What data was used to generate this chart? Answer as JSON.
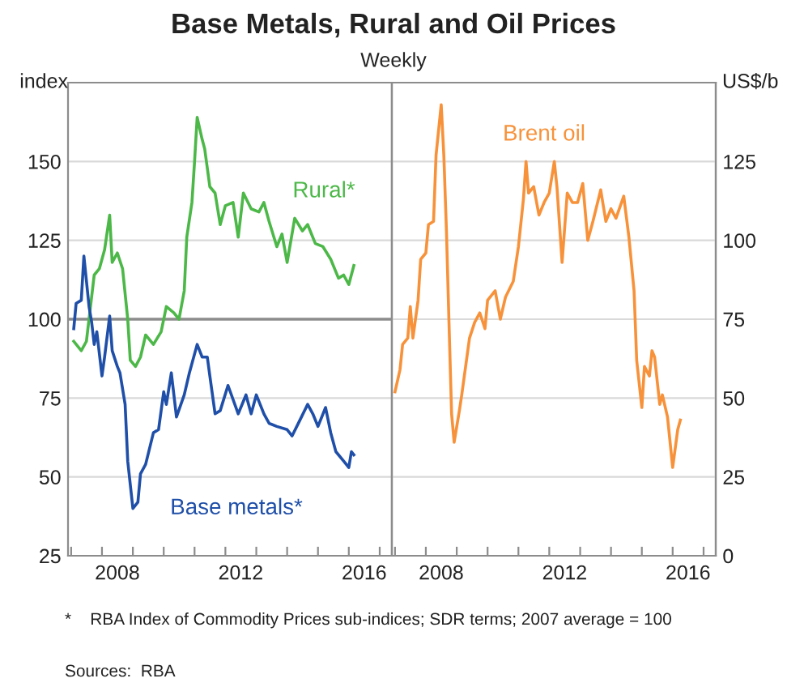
{
  "chart_data": [
    {
      "type": "line",
      "title": "Base Metals, Rural and Oil Prices",
      "subtitle": "Weekly",
      "ylabel": "index",
      "annotations": [
        "*    RBA Index of Commodity Prices sub-indices; SDR terms; 2007 average = 100",
        "Sources:  RBA"
      ],
      "xlim": [
        "2006-11-25",
        "2017-05-25"
      ],
      "xticks": [
        {
          "value": "2007-01-01",
          "label": null
        },
        {
          "value": "2008-01-01",
          "label": null
        },
        {
          "value": "2009-01-01",
          "label": null
        },
        {
          "value": "2010-01-01",
          "label": null
        },
        {
          "value": "2011-01-01",
          "label": null
        },
        {
          "value": "2012-01-01",
          "label": null
        },
        {
          "value": "2013-01-01",
          "label": null
        },
        {
          "value": "2014-01-01",
          "label": null
        },
        {
          "value": "2015-01-01",
          "label": null
        },
        {
          "value": "2016-01-01",
          "label": null
        },
        {
          "value": "2017-01-01",
          "label": null
        },
        {
          "value": "2008-07-01",
          "label": "2008"
        },
        {
          "value": "2012-07-01",
          "label": "2012"
        },
        {
          "value": "2016-07-01",
          "label": "2016"
        }
      ],
      "ylim": [
        25,
        175
      ],
      "yticks": [
        25,
        50,
        75,
        100,
        125,
        150
      ],
      "grid": "y",
      "legend": false,
      "ref_lines": [
        {
          "axis": "y",
          "value": 100,
          "color": "#8c8c8c"
        }
      ],
      "series": [
        {
          "name": "Rural*",
          "color": "#4cb848",
          "x": [
            "2007-02",
            "2007-05",
            "2007-07",
            "2007-10",
            "2007-12",
            "2008-02",
            "2008-04",
            "2008-05",
            "2008-07",
            "2008-09",
            "2008-11",
            "2008-12",
            "2009-02",
            "2009-04",
            "2009-06",
            "2009-09",
            "2009-12",
            "2010-02",
            "2010-05",
            "2010-07",
            "2010-09",
            "2010-10",
            "2010-12",
            "2011-01",
            "2011-02",
            "2011-04",
            "2011-05",
            "2011-07",
            "2011-09",
            "2011-11",
            "2012-01",
            "2012-04",
            "2012-06",
            "2012-08",
            "2012-11",
            "2013-02",
            "2013-04",
            "2013-06",
            "2013-09",
            "2013-11",
            "2014-01",
            "2014-04",
            "2014-07",
            "2014-09",
            "2014-12",
            "2015-03",
            "2015-06",
            "2015-09",
            "2015-11",
            "2016-01",
            "2016-03"
          ],
          "values": [
            93,
            90,
            93,
            114,
            116,
            122,
            133,
            118,
            121,
            116,
            100,
            87,
            85,
            88,
            95,
            92,
            96,
            104,
            102,
            100,
            109,
            126,
            137,
            150,
            164,
            157,
            154,
            142,
            140,
            130,
            136,
            137,
            126,
            140,
            135,
            134,
            137,
            131,
            123,
            127,
            118,
            132,
            128,
            130,
            124,
            123,
            119,
            113,
            114,
            111,
            117
          ]
        },
        {
          "name": "Base metals*",
          "color": "#1f4fa8",
          "x": [
            "2007-02",
            "2007-03",
            "2007-05",
            "2007-06",
            "2007-08",
            "2007-09",
            "2007-10",
            "2007-11",
            "2008-01",
            "2008-02",
            "2008-04",
            "2008-05",
            "2008-07",
            "2008-08",
            "2008-10",
            "2008-11",
            "2009-01",
            "2009-03",
            "2009-04",
            "2009-06",
            "2009-09",
            "2009-11",
            "2010-01",
            "2010-02",
            "2010-04",
            "2010-06",
            "2010-09",
            "2010-11",
            "2011-02",
            "2011-04",
            "2011-06",
            "2011-07",
            "2011-09",
            "2011-11",
            "2012-02",
            "2012-06",
            "2012-09",
            "2012-11",
            "2013-01",
            "2013-04",
            "2013-06",
            "2013-09",
            "2014-01",
            "2014-03",
            "2014-06",
            "2014-09",
            "2014-11",
            "2015-01",
            "2015-04",
            "2015-06",
            "2015-08",
            "2015-11",
            "2016-01",
            "2016-02",
            "2016-03"
          ],
          "values": [
            97,
            105,
            106,
            120,
            104,
            99,
            92,
            96,
            82,
            88,
            101,
            90,
            85,
            83,
            73,
            55,
            40,
            42,
            51,
            54,
            64,
            65,
            77,
            73,
            83,
            69,
            76,
            83,
            92,
            88,
            88,
            82,
            70,
            71,
            79,
            70,
            76,
            70,
            76,
            70,
            67,
            66,
            65,
            63,
            68,
            73,
            70,
            66,
            72,
            64,
            58,
            55,
            53,
            58,
            57
          ]
        }
      ]
    },
    {
      "type": "line",
      "y2label": "US$/b",
      "xlim": [
        "2006-11-25",
        "2017-05-25"
      ],
      "xticks": [
        {
          "value": "2007-01-01",
          "label": null
        },
        {
          "value": "2008-01-01",
          "label": null
        },
        {
          "value": "2009-01-01",
          "label": null
        },
        {
          "value": "2010-01-01",
          "label": null
        },
        {
          "value": "2011-01-01",
          "label": null
        },
        {
          "value": "2012-01-01",
          "label": null
        },
        {
          "value": "2013-01-01",
          "label": null
        },
        {
          "value": "2014-01-01",
          "label": null
        },
        {
          "value": "2015-01-01",
          "label": null
        },
        {
          "value": "2016-01-01",
          "label": null
        },
        {
          "value": "2017-01-01",
          "label": null
        },
        {
          "value": "2008-07-01",
          "label": "2008"
        },
        {
          "value": "2012-07-01",
          "label": "2012"
        },
        {
          "value": "2016-07-01",
          "label": "2016"
        }
      ],
      "y2lim": [
        0,
        150
      ],
      "y2ticks": [
        0,
        25,
        50,
        75,
        100,
        125
      ],
      "grid": "y",
      "legend": false,
      "series": [
        {
          "name": "Brent oil",
          "color": "#f7923a",
          "axis": "y2",
          "x": [
            "2007-01",
            "2007-03",
            "2007-04",
            "2007-06",
            "2007-07",
            "2007-08",
            "2007-10",
            "2007-11",
            "2008-01",
            "2008-02",
            "2008-04",
            "2008-05",
            "2008-07",
            "2008-08",
            "2008-09",
            "2008-10",
            "2008-11",
            "2008-12",
            "2009-02",
            "2009-03",
            "2009-06",
            "2009-08",
            "2009-10",
            "2009-12",
            "2010-01",
            "2010-04",
            "2010-06",
            "2010-08",
            "2010-11",
            "2011-01",
            "2011-03",
            "2011-04",
            "2011-05",
            "2011-07",
            "2011-09",
            "2011-11",
            "2012-01",
            "2012-03",
            "2012-04",
            "2012-06",
            "2012-08",
            "2012-10",
            "2012-12",
            "2013-02",
            "2013-04",
            "2013-06",
            "2013-09",
            "2013-11",
            "2014-01",
            "2014-03",
            "2014-06",
            "2014-08",
            "2014-10",
            "2014-11",
            "2015-01",
            "2015-02",
            "2015-04",
            "2015-05",
            "2015-06",
            "2015-08",
            "2015-09",
            "2015-11",
            "2016-01",
            "2016-03",
            "2016-04"
          ],
          "values": [
            52,
            59,
            67,
            69,
            79,
            69,
            81,
            94,
            96,
            105,
            106,
            127,
            143,
            127,
            103,
            74,
            45,
            36,
            46,
            51,
            69,
            74,
            77,
            72,
            81,
            84,
            75,
            82,
            87,
            98,
            113,
            125,
            115,
            117,
            108,
            112,
            115,
            125,
            117,
            93,
            115,
            112,
            112,
            118,
            100,
            106,
            116,
            106,
            110,
            107,
            114,
            101,
            84,
            62,
            47,
            60,
            57,
            65,
            63,
            48,
            51,
            44,
            28,
            40,
            43
          ]
        }
      ]
    }
  ]
}
